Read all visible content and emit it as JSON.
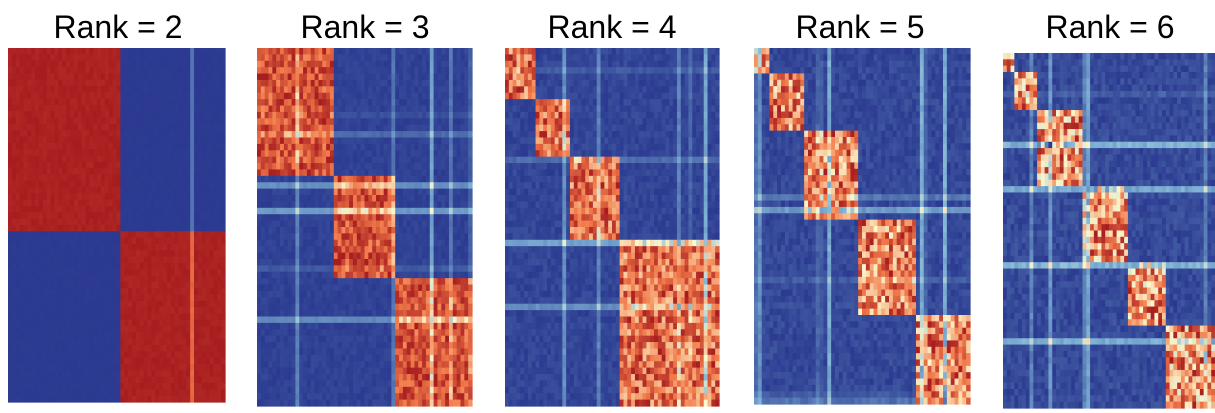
{
  "chart_data": {
    "type": "heatmap",
    "colors": {
      "low": "#2b3a90",
      "mid_low": "#7fb3d6",
      "mid": "#fbf7cd",
      "mid_high": "#f27a4a",
      "high": "#a61c1f"
    },
    "panels": [
      {
        "title": "Rank = 2",
        "rank": 2,
        "clusters": [
          0.52,
          0.48
        ],
        "noise": 0.02
      },
      {
        "title": "Rank = 3",
        "rank": 3,
        "clusters": [
          0.36,
          0.28,
          0.36
        ],
        "noise": 0.18
      },
      {
        "title": "Rank = 4",
        "rank": 4,
        "clusters": [
          0.14,
          0.17,
          0.22,
          0.47
        ],
        "noise": 0.26
      },
      {
        "title": "Rank = 5",
        "rank": 5,
        "clusters": [
          0.07,
          0.17,
          0.24,
          0.27,
          0.25
        ],
        "noise": 0.32
      },
      {
        "title": "Rank = 6",
        "rank": 6,
        "clusters": [
          0.06,
          0.1,
          0.21,
          0.22,
          0.18,
          0.23
        ],
        "noise": 0.36
      }
    ]
  }
}
